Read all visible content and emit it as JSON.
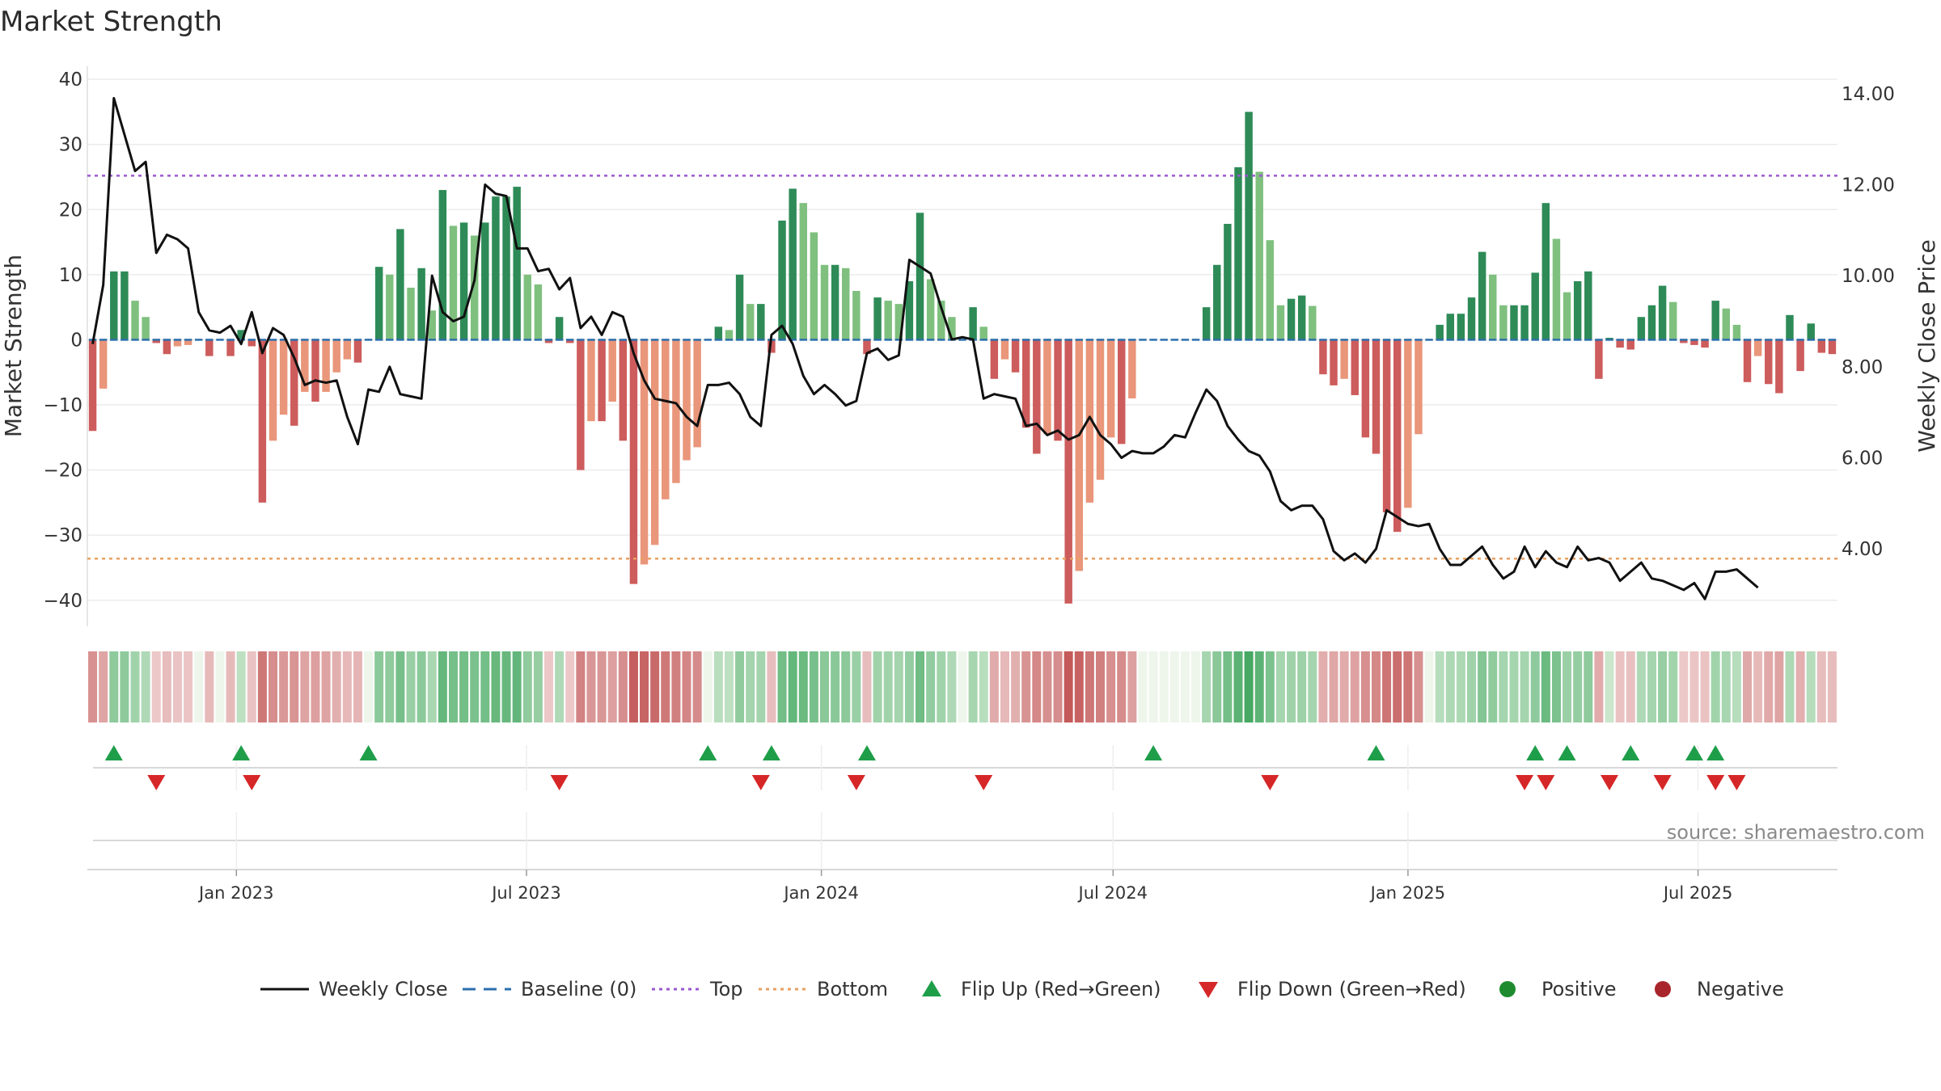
{
  "chart_data": {
    "type": "bar",
    "title": "Market Strength",
    "ylabel": "Market Strength",
    "y2label": "Weekly Close Price",
    "ylim": [
      -44,
      42
    ],
    "y2lim": [
      2.3,
      14.6
    ],
    "yticks": [
      -40,
      -30,
      -20,
      -10,
      0,
      10,
      20,
      30,
      40
    ],
    "y2ticks": [
      "4.00",
      "6.00",
      "8.00",
      "10.00",
      "12.00",
      "14.00"
    ],
    "top_level": 25.2,
    "bottom_level": -33.6,
    "x_start": "2022-09-30",
    "x_end": "2025-09-26",
    "x_ticks": [
      "Jan 2023",
      "Jul 2023",
      "Jan 2024",
      "Jul 2024",
      "Jan 2025",
      "Jul 2025"
    ],
    "source": "source: sharemaestro.com",
    "strength": [
      -14,
      -7.5,
      10.5,
      10.5,
      6,
      3.5,
      -0.5,
      -2.2,
      -1,
      -0.8,
      0,
      -2.5,
      0,
      -2.5,
      1.5,
      -1,
      -25,
      -15.5,
      -11.5,
      -13.2,
      -8,
      -9.5,
      -8,
      -5,
      -3,
      -3.5,
      0,
      11.2,
      10,
      17,
      8,
      11,
      4.5,
      23,
      17.5,
      18,
      16,
      18,
      22,
      22,
      23.5,
      10,
      8.5,
      -0.5,
      3.5,
      -0.5,
      -20,
      -12.5,
      -12.5,
      -9.5,
      -15.5,
      -37.5,
      -34.5,
      -31.5,
      -24.5,
      -22,
      -18.5,
      -16.5,
      0,
      2,
      1.5,
      10,
      5.5,
      5.5,
      -2,
      18.3,
      23.2,
      21,
      16.5,
      11.5,
      11.5,
      11,
      7.5,
      -2.2,
      6.5,
      6,
      5.5,
      9,
      19.5,
      9.3,
      6,
      3.5,
      0,
      5,
      2,
      -6,
      -3,
      -5,
      -13.5,
      -17.5,
      -14.5,
      -15.5,
      -40.5,
      -35.5,
      -25,
      -21.5,
      -15,
      -16,
      -9,
      0,
      0,
      0,
      0,
      0,
      0,
      5,
      11.5,
      17.8,
      26.5,
      35,
      25.8,
      15.3,
      5.3,
      6.3,
      6.8,
      5.2,
      -5.3,
      -7,
      -6,
      -8.5,
      -15,
      -17.5,
      -26.5,
      -29.5,
      -25.8,
      -14.5,
      0,
      2.3,
      4,
      4,
      6.5,
      13.5,
      10,
      5.3,
      5.3,
      5.3,
      10.3,
      21,
      15.5,
      7.3,
      9,
      10.5,
      -6,
      0.3,
      -1.2,
      -1.5,
      3.5,
      5.3,
      8.3,
      5.8,
      -0.5,
      -0.8,
      -1.2,
      6,
      4.8,
      2.3,
      -6.5,
      -2.5,
      -6.8,
      -8.2,
      3.8,
      -4.8,
      2.5,
      -2,
      -2.2
    ],
    "weekly_close": [
      8.5,
      9.8,
      13.9,
      13.1,
      12.3,
      12.5,
      10.5,
      10.9,
      10.8,
      10.6,
      9.2,
      8.8,
      8.75,
      8.9,
      8.5,
      9.2,
      8.3,
      8.85,
      8.7,
      8.2,
      7.6,
      7.7,
      7.65,
      7.7,
      6.9,
      6.3,
      7.5,
      7.45,
      8.0,
      7.4,
      7.35,
      7.3,
      10.0,
      9.2,
      9.0,
      9.1,
      9.9,
      12.0,
      11.8,
      11.75,
      10.6,
      10.6,
      10.1,
      10.15,
      9.7,
      9.95,
      8.85,
      9.1,
      8.7,
      9.2,
      9.1,
      8.3,
      7.7,
      7.3,
      7.25,
      7.2,
      6.9,
      6.7,
      7.6,
      7.6,
      7.65,
      7.4,
      6.9,
      6.7,
      8.7,
      8.9,
      8.5,
      7.8,
      7.4,
      7.6,
      7.4,
      7.15,
      7.25,
      8.3,
      8.4,
      8.15,
      8.25,
      10.35,
      10.2,
      10.05,
      9.3,
      8.6,
      8.65,
      8.6,
      7.3,
      7.4,
      7.35,
      7.3,
      6.7,
      6.75,
      6.5,
      6.6,
      6.4,
      6.5,
      6.9,
      6.5,
      6.3,
      6.0,
      6.15,
      6.1,
      6.1,
      6.25,
      6.5,
      6.45,
      7.0,
      7.5,
      7.25,
      6.7,
      6.4,
      6.15,
      6.05,
      5.7,
      5.05,
      4.85,
      4.95,
      4.95,
      4.65,
      3.95,
      3.75,
      3.9,
      3.7,
      4.0,
      4.85,
      4.7,
      4.55,
      4.5,
      4.55,
      4.0,
      3.65,
      3.65,
      3.85,
      4.05,
      3.65,
      3.35,
      3.5,
      4.05,
      3.6,
      3.95,
      3.7,
      3.6,
      4.05,
      3.75,
      3.8,
      3.7,
      3.3,
      3.5,
      3.7,
      3.35,
      3.3,
      3.2,
      3.1,
      3.25,
      2.9,
      3.5,
      3.5,
      3.55,
      3.35,
      3.15
    ],
    "flip_up_weeks": [
      2,
      14,
      26,
      58,
      64,
      73,
      100,
      121,
      136,
      139,
      145,
      151,
      153
    ],
    "flip_down_weeks": [
      6,
      15,
      44,
      63,
      72,
      84,
      111,
      135,
      137,
      143,
      148,
      153,
      155
    ],
    "legend": [
      {
        "label": "Weekly Close",
        "kind": "line",
        "color": "#111111"
      },
      {
        "label": "Baseline (0)",
        "kind": "dash",
        "color": "#2b6fad"
      },
      {
        "label": "Top",
        "kind": "dot",
        "color": "#9b59d0"
      },
      {
        "label": "Bottom",
        "kind": "dot",
        "color": "#e8a060"
      },
      {
        "label": "Flip Up (Red→Green)",
        "kind": "tri-up",
        "color": "#1f9e4a"
      },
      {
        "label": "Flip Down (Green→Red)",
        "kind": "tri-down",
        "color": "#d62728"
      },
      {
        "label": "Positive",
        "kind": "circle",
        "color": "#1e8c2e"
      },
      {
        "label": "Negative",
        "kind": "circle",
        "color": "#a8262b"
      }
    ]
  },
  "colors": {
    "pos_strong": "#2e8b57",
    "pos_weak": "#7fc07f",
    "neg_strong": "#cd5c5c",
    "neg_weak": "#e9967a",
    "baseline": "#2b6fad",
    "top": "#9b59d0",
    "bottom": "#e8a060",
    "close": "#111111"
  }
}
